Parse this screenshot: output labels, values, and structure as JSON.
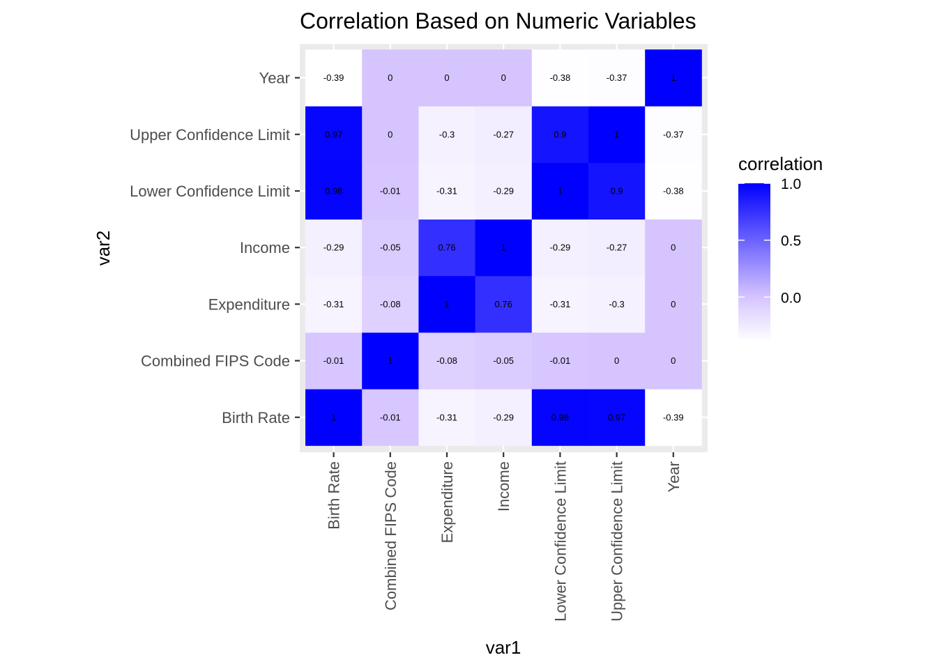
{
  "chart_data": {
    "type": "heatmap",
    "title": "Correlation Based on Numeric Variables",
    "xlabel": "var1",
    "ylabel": "var2",
    "variables": [
      "Birth Rate",
      "Combined FIPS Code",
      "Expenditure",
      "Income",
      "Lower Confidence Limit",
      "Upper Confidence Limit",
      "Year"
    ],
    "matrix": [
      [
        1,
        -0.01,
        -0.31,
        -0.29,
        0.98,
        0.97,
        -0.39
      ],
      [
        -0.01,
        1,
        -0.08,
        -0.05,
        -0.01,
        0,
        0
      ],
      [
        -0.31,
        -0.08,
        1,
        0.76,
        -0.31,
        -0.3,
        0
      ],
      [
        -0.29,
        -0.05,
        0.76,
        1,
        -0.29,
        -0.27,
        0
      ],
      [
        0.98,
        -0.01,
        -0.31,
        -0.29,
        1,
        0.9,
        -0.38
      ],
      [
        0.97,
        0,
        -0.3,
        -0.27,
        0.9,
        1,
        -0.37
      ],
      [
        -0.39,
        0,
        0,
        0,
        -0.38,
        -0.37,
        1
      ]
    ],
    "legend": {
      "title": "correlation",
      "ticks": [
        "1.0",
        "0.5",
        "0.0"
      ],
      "tick_values": [
        1.0,
        0.5,
        0.0
      ],
      "range": [
        -0.39,
        1.0
      ],
      "placement": "right"
    },
    "colors": {
      "low": "#ffffff",
      "mid": "#d6c4ff",
      "high": "#0000ff",
      "panel_background": "#ebebeb",
      "grid": "#ffffff"
    },
    "grid": true
  }
}
